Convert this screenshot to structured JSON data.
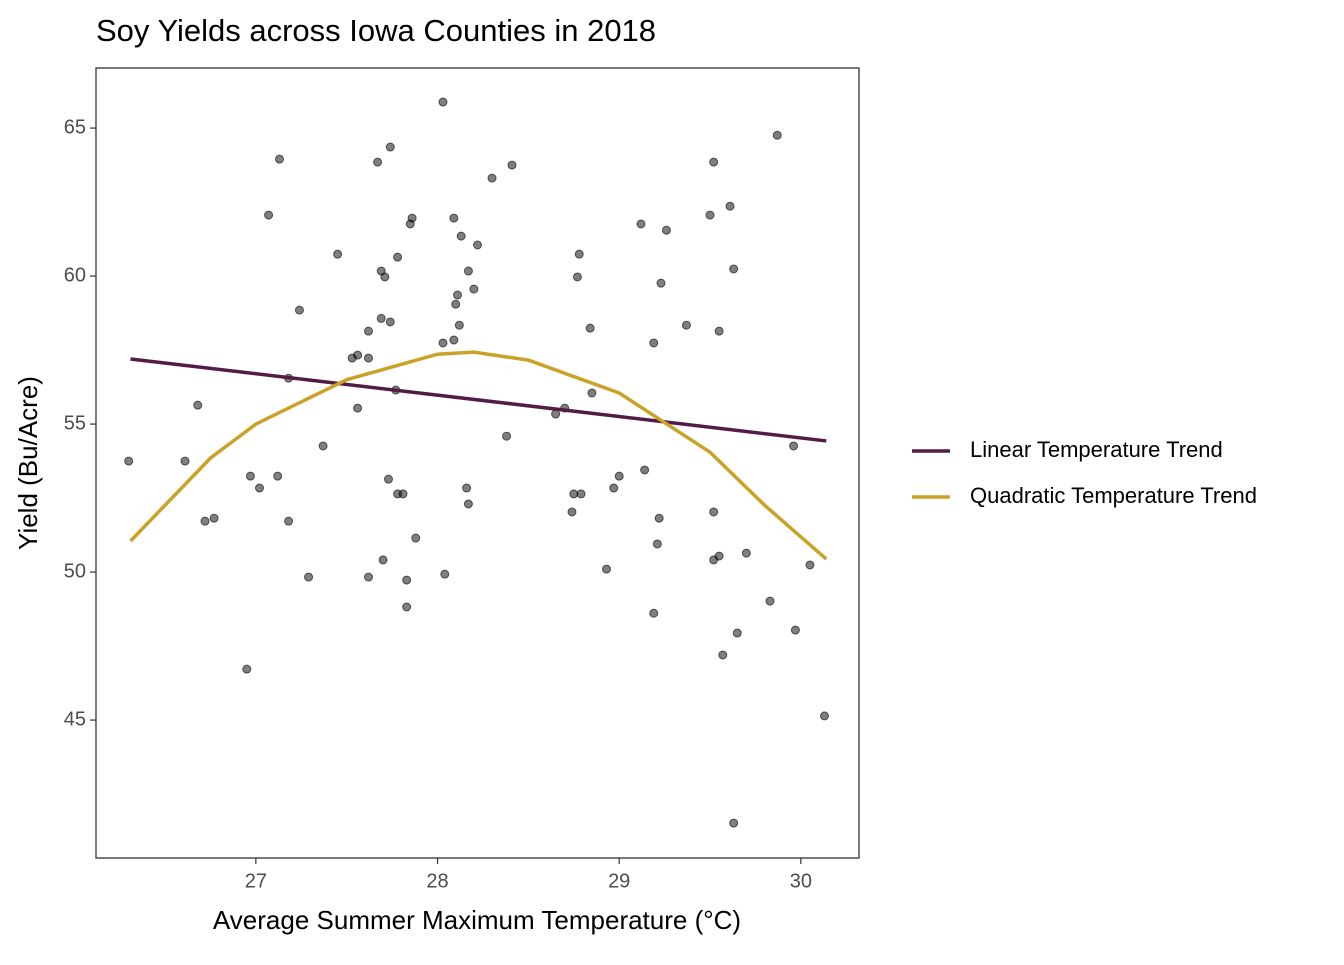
{
  "chart_data": {
    "type": "scatter",
    "title": "Soy Yields across Iowa Counties in 2018",
    "x_label": "Average Summer Maximum Temperature (°C)",
    "y_label": "Yield (Bu/Acre)",
    "x": [
      26.3,
      26.61,
      26.68,
      26.72,
      26.77,
      26.95,
      26.97,
      27.02,
      27.07,
      27.12,
      27.13,
      27.18,
      27.18,
      27.24,
      27.29,
      27.37,
      27.45,
      27.53,
      27.56,
      27.56,
      27.62,
      27.62,
      27.62,
      27.67,
      27.69,
      27.69,
      27.7,
      27.71,
      27.73,
      27.74,
      27.74,
      27.77,
      27.78,
      27.78,
      27.81,
      27.83,
      27.83,
      27.85,
      27.86,
      27.88,
      28.03,
      28.04,
      28.03,
      28.09,
      28.09,
      28.1,
      28.11,
      28.12,
      28.13,
      28.16,
      28.17,
      28.17,
      28.2,
      28.22,
      28.3,
      28.38,
      28.41,
      28.65,
      28.7,
      28.74,
      28.75,
      28.77,
      28.78,
      28.79,
      28.84,
      28.85,
      28.93,
      28.97,
      29.0,
      29.12,
      29.14,
      29.19,
      29.19,
      29.21,
      29.22,
      29.23,
      29.26,
      29.37,
      29.5,
      29.52,
      29.52,
      29.52,
      29.55,
      29.55,
      29.57,
      29.61,
      29.63,
      29.63,
      29.65,
      29.7,
      29.83,
      29.87,
      29.96,
      29.97,
      30.05,
      30.13
    ],
    "values": [
      53.75,
      53.75,
      55.64,
      51.72,
      51.82,
      46.72,
      53.24,
      52.84,
      62.06,
      53.24,
      63.95,
      51.72,
      56.55,
      58.85,
      49.83,
      54.26,
      60.74,
      57.23,
      57.33,
      55.54,
      58.14,
      49.83,
      57.23,
      63.85,
      58.57,
      60.17,
      50.41,
      59.97,
      53.14,
      64.36,
      58.45,
      56.15,
      60.64,
      52.64,
      52.64,
      49.73,
      48.82,
      61.76,
      61.96,
      51.15,
      65.88,
      49.93,
      57.74,
      57.84,
      61.96,
      59.05,
      59.36,
      58.34,
      61.35,
      52.84,
      60.17,
      52.3,
      59.56,
      61.05,
      63.31,
      54.59,
      63.75,
      55.34,
      55.54,
      52.03,
      52.64,
      59.97,
      60.74,
      52.64,
      58.24,
      56.05,
      50.1,
      52.84,
      53.24,
      61.76,
      53.45,
      57.74,
      48.61,
      50.95,
      51.82,
      59.76,
      61.55,
      58.34,
      62.06,
      63.85,
      52.03,
      50.41,
      58.14,
      50.54,
      47.2,
      62.36,
      41.52,
      60.24,
      47.94,
      50.64,
      49.02,
      64.76,
      54.26,
      48.04,
      50.24,
      45.14
    ],
    "point_color": "#000000",
    "series": [
      {
        "name": "Linear Temperature Trend",
        "color": "#541b46",
        "type": "line",
        "x": [
          26.31,
          30.14
        ],
        "values": [
          57.2,
          54.43
        ]
      },
      {
        "name": "Quadratic Temperature Trend",
        "color": "#c9a227",
        "type": "line",
        "x": [
          26.31,
          26.75,
          27.0,
          27.5,
          28.0,
          28.2,
          28.5,
          29.0,
          29.5,
          29.8,
          30.14
        ],
        "values": [
          51.05,
          53.85,
          55.0,
          56.5,
          57.36,
          57.43,
          57.16,
          56.05,
          54.05,
          52.26,
          50.44
        ]
      }
    ],
    "xlim": [
      26.12,
      30.32
    ],
    "ylim": [
      40.34,
      67.03
    ],
    "xticks": [
      27,
      28,
      29,
      30
    ],
    "yticks": [
      45,
      50,
      55,
      60,
      65
    ],
    "grid": false,
    "legend": "right"
  }
}
